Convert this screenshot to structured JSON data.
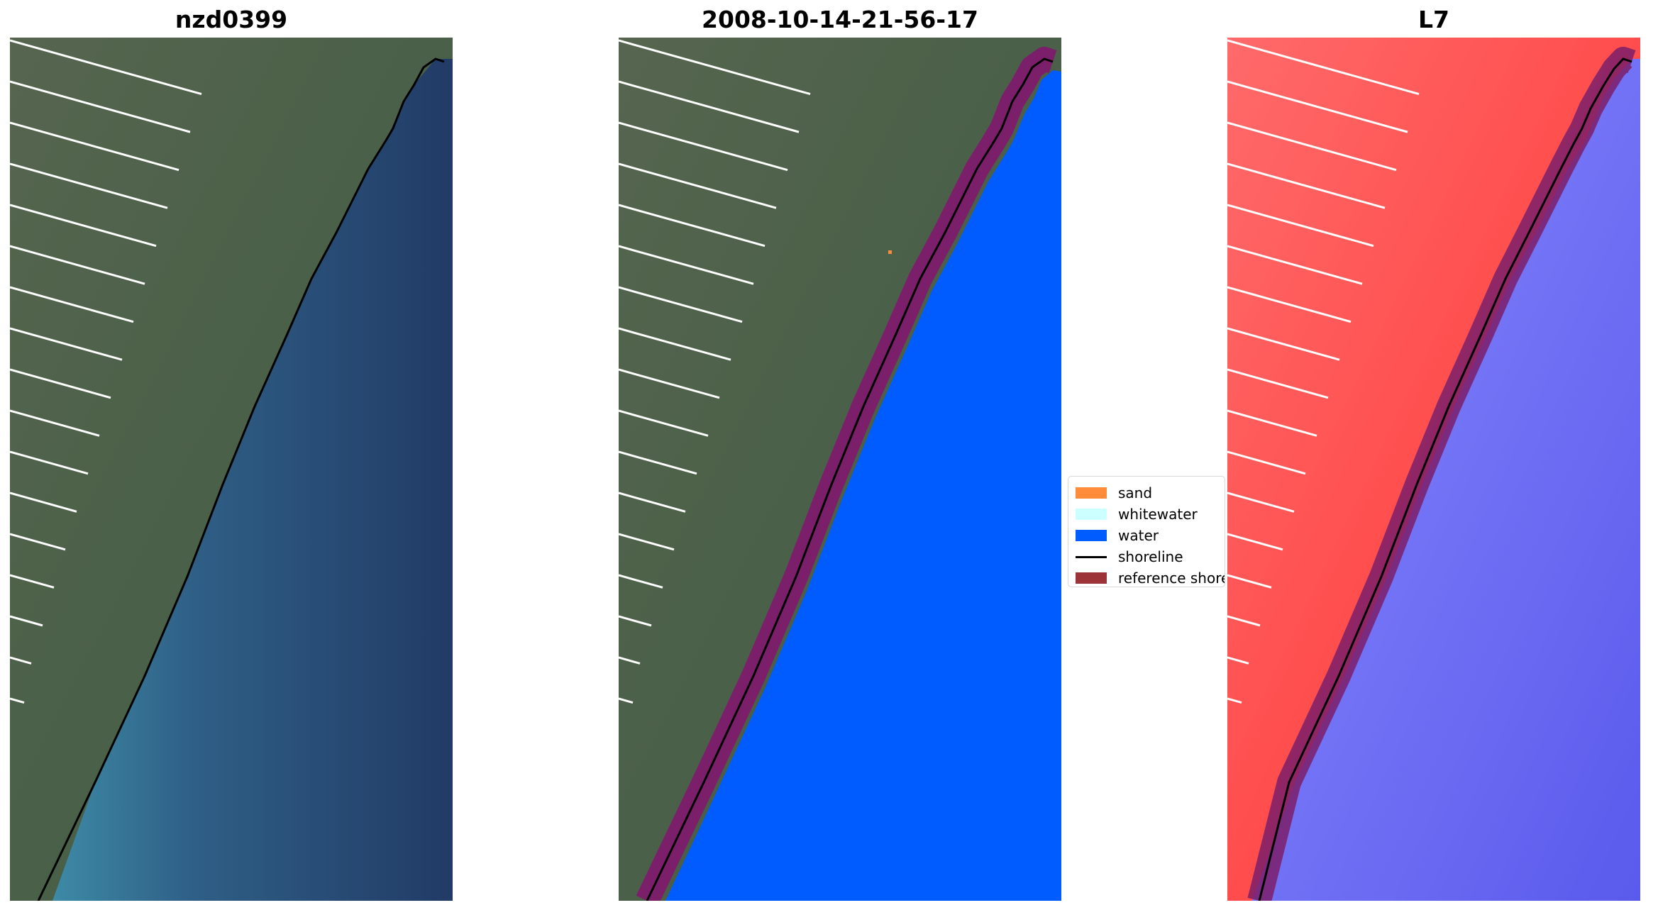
{
  "panels": [
    {
      "title": "nzd0399"
    },
    {
      "title": "2008-10-14-21-56-17"
    },
    {
      "title": "L7"
    }
  ],
  "legend": {
    "items": [
      {
        "label": "sand",
        "color": "#ff8c3b",
        "kind": "patch"
      },
      {
        "label": "whitewater",
        "color": "#ccffff",
        "kind": "patch"
      },
      {
        "label": "water",
        "color": "#005cff",
        "kind": "patch"
      },
      {
        "label": "shoreline",
        "color": "#000000",
        "kind": "line"
      },
      {
        "label": "reference shoreline",
        "color": "#9b3338",
        "kind": "patch"
      }
    ]
  },
  "colors": {
    "land_rgb": "#4d5f4c",
    "sea_rgb": "#24406b",
    "nearshore_rgb": "#3f8ba8",
    "water_class": "#005cff",
    "buffer_band": "#7b1f6a",
    "land_false": "#ff4a4a",
    "sea_false": "#6464f0",
    "shoreline": "#000000"
  }
}
